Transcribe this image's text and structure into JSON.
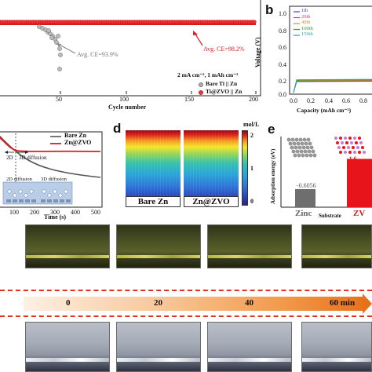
{
  "panel_a": {
    "xlabel": "Cycle number",
    "xticks": [
      "50",
      "100",
      "150",
      "200"
    ],
    "ann_bare": "Avg. CE=93.9%",
    "ann_zvo": "Avg. CE=98.2%",
    "condition": "2 mA cm⁻², 1 mAh cm⁻²",
    "legend": [
      "Bare Ti || Zn",
      "Ti@ZVO || Zn"
    ]
  },
  "panel_b": {
    "letter": "b",
    "ylabel": "Voltage (V)",
    "xlabel": "Capacity (mAh cm⁻²)",
    "yticks": [
      "1.0",
      "0.8",
      "0.6",
      "0.4",
      "0.2",
      "0.0"
    ],
    "xticks": [
      "0.0",
      "0.2",
      "0.4",
      "0.6",
      "0.8"
    ],
    "legend": [
      {
        "label": "1th",
        "color": "#4a3fcf"
      },
      {
        "label": "20th",
        "color": "#d33a7c"
      },
      {
        "label": "40th",
        "color": "#e08a22"
      },
      {
        "label": "100th",
        "color": "#2f9a3a"
      },
      {
        "label": "150th",
        "color": "#2aa7b0"
      }
    ]
  },
  "panel_c": {
    "legend": [
      "Bare Zn",
      "Zn@ZVO"
    ],
    "ann_2d": "2D",
    "ann_3d": "3D diffusion",
    "inset_2d": "2D diffusion",
    "inset_3d": "3D diffusion",
    "xticks": [
      "100",
      "200",
      "300",
      "400",
      "500"
    ],
    "xlabel": "Time (s)"
  },
  "panel_d": {
    "letter": "d",
    "unit": "mol/L",
    "scale": [
      "2",
      "1",
      "0"
    ],
    "labels": [
      "Bare Zn",
      "Zn@ZVO"
    ]
  },
  "panel_e": {
    "letter": "e",
    "ylabel": "Adsorption energy (eV)",
    "bars": [
      {
        "label": "Zinc",
        "value": "-0.6056",
        "color": "#6e6e6e"
      },
      {
        "label": "ZV",
        "value": "-1.6",
        "color": "#e8141c"
      }
    ],
    "xlabel": "Substrate"
  },
  "timeline": {
    "labels": [
      "0",
      "20",
      "40",
      "60 min"
    ]
  }
}
